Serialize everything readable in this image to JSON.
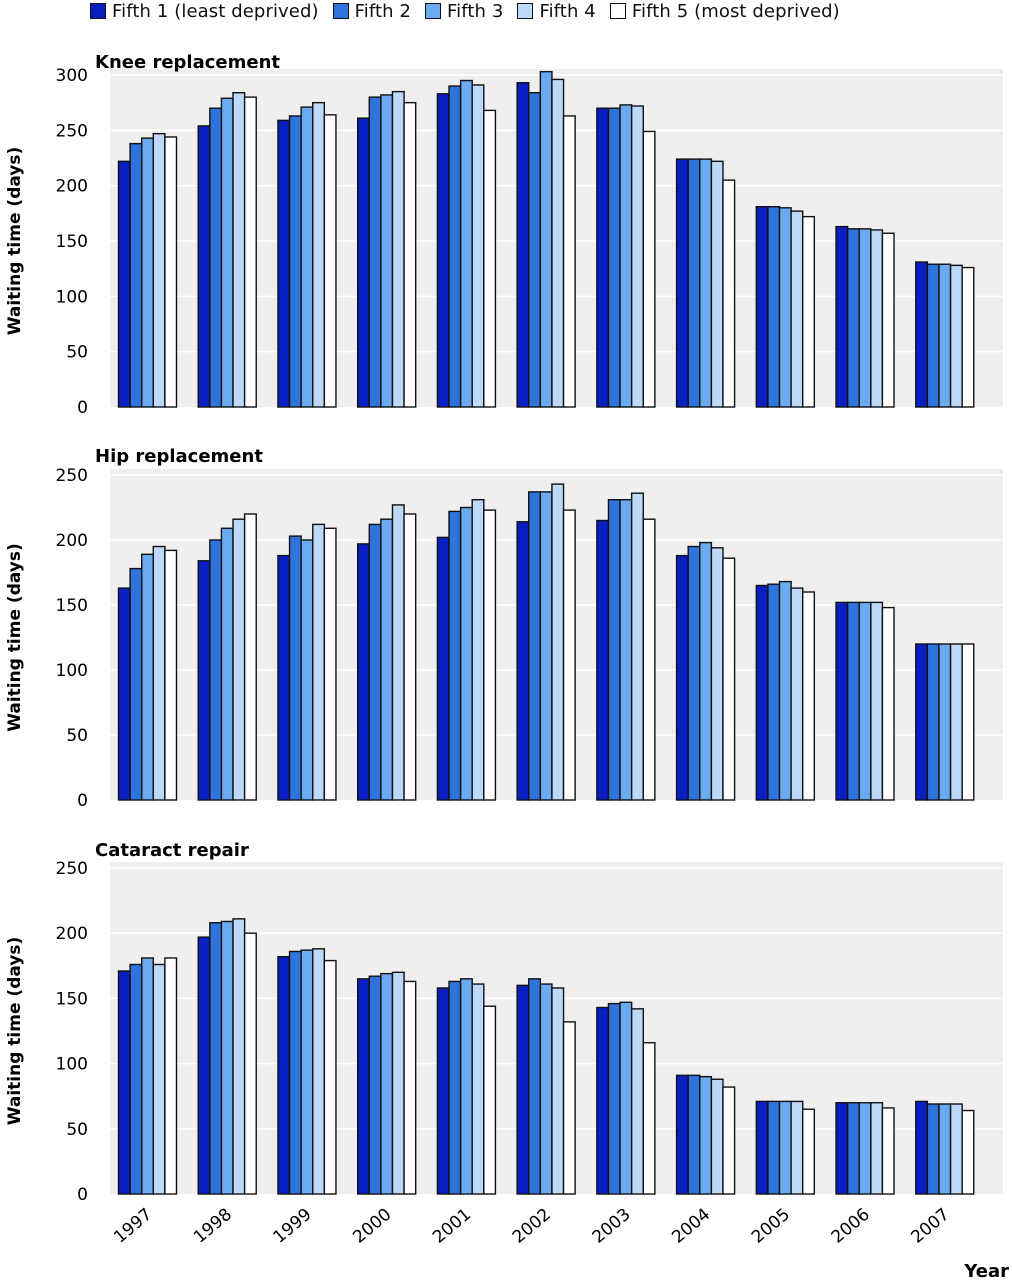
{
  "legend": [
    {
      "label": "Fifth 1 (least deprived)",
      "color": "#0a1fc2"
    },
    {
      "label": "Fifth 2",
      "color": "#2f73dc"
    },
    {
      "label": "Fifth 3",
      "color": "#6aaaf0"
    },
    {
      "label": "Fifth 4",
      "color": "#bcd9fa"
    },
    {
      "label": "Fifth 5 (most deprived)",
      "color": "#ffffff"
    }
  ],
  "xlabel": "Year",
  "chart_data": [
    {
      "type": "bar",
      "title": "Knee replacement",
      "ylabel": "Waiting time (days)",
      "xlabel": "Year",
      "ylim": [
        0,
        300
      ],
      "yticks": [
        0,
        50,
        100,
        150,
        200,
        250,
        300
      ],
      "categories": [
        "1997",
        "1998",
        "1999",
        "2000",
        "2001",
        "2002",
        "2003",
        "2004",
        "2005",
        "2006",
        "2007"
      ],
      "series": [
        {
          "name": "Fifth 1 (least deprived)",
          "values": [
            222,
            254,
            259,
            261,
            283,
            293,
            270,
            224,
            181,
            163,
            131
          ]
        },
        {
          "name": "Fifth 2",
          "values": [
            238,
            270,
            263,
            280,
            290,
            284,
            270,
            224,
            181,
            161,
            129
          ]
        },
        {
          "name": "Fifth 3",
          "values": [
            243,
            279,
            271,
            282,
            295,
            303,
            273,
            224,
            180,
            161,
            129
          ]
        },
        {
          "name": "Fifth 4",
          "values": [
            247,
            284,
            275,
            285,
            291,
            296,
            272,
            222,
            177,
            160,
            128
          ]
        },
        {
          "name": "Fifth 5 (most deprived)",
          "values": [
            244,
            280,
            264,
            275,
            268,
            263,
            249,
            205,
            172,
            157,
            126
          ]
        }
      ]
    },
    {
      "type": "bar",
      "title": "Hip replacement",
      "ylabel": "Waiting time (days)",
      "xlabel": "Year",
      "ylim": [
        0,
        250
      ],
      "yticks": [
        0,
        50,
        100,
        150,
        200,
        250
      ],
      "categories": [
        "1997",
        "1998",
        "1999",
        "2000",
        "2001",
        "2002",
        "2003",
        "2004",
        "2005",
        "2006",
        "2007"
      ],
      "series": [
        {
          "name": "Fifth 1 (least deprived)",
          "values": [
            163,
            184,
            188,
            197,
            202,
            214,
            215,
            188,
            165,
            152,
            120
          ]
        },
        {
          "name": "Fifth 2",
          "values": [
            178,
            200,
            203,
            212,
            222,
            237,
            231,
            195,
            166,
            152,
            120
          ]
        },
        {
          "name": "Fifth 3",
          "values": [
            189,
            209,
            200,
            216,
            225,
            237,
            231,
            198,
            168,
            152,
            120
          ]
        },
        {
          "name": "Fifth 4",
          "values": [
            195,
            216,
            212,
            227,
            231,
            243,
            236,
            194,
            163,
            152,
            120
          ]
        },
        {
          "name": "Fifth 5 (most deprived)",
          "values": [
            192,
            220,
            209,
            220,
            223,
            223,
            216,
            186,
            160,
            148,
            120
          ]
        }
      ]
    },
    {
      "type": "bar",
      "title": "Cataract repair",
      "ylabel": "Waiting time (days)",
      "xlabel": "Year",
      "ylim": [
        0,
        250
      ],
      "yticks": [
        0,
        50,
        100,
        150,
        200,
        250
      ],
      "categories": [
        "1997",
        "1998",
        "1999",
        "2000",
        "2001",
        "2002",
        "2003",
        "2004",
        "2005",
        "2006",
        "2007"
      ],
      "series": [
        {
          "name": "Fifth 1 (least deprived)",
          "values": [
            171,
            197,
            182,
            165,
            158,
            160,
            143,
            91,
            71,
            70,
            71
          ]
        },
        {
          "name": "Fifth 2",
          "values": [
            176,
            208,
            186,
            167,
            163,
            165,
            146,
            91,
            71,
            70,
            69
          ]
        },
        {
          "name": "Fifth 3",
          "values": [
            181,
            209,
            187,
            169,
            165,
            161,
            147,
            90,
            71,
            70,
            69
          ]
        },
        {
          "name": "Fifth 4",
          "values": [
            176,
            211,
            188,
            170,
            161,
            158,
            142,
            88,
            71,
            70,
            69
          ]
        },
        {
          "name": "Fifth 5 (most deprived)",
          "values": [
            181,
            200,
            179,
            163,
            144,
            132,
            116,
            82,
            65,
            66,
            64
          ]
        }
      ]
    }
  ]
}
